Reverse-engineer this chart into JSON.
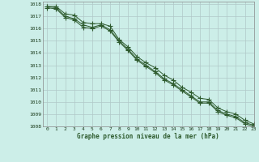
{
  "title": "Graphe pression niveau de la mer (hPa)",
  "background_color": "#cceee8",
  "grid_color": "#b0c8c8",
  "line_color": "#2d5a2d",
  "marker_color": "#2d5a2d",
  "xlim": [
    -0.5,
    23
  ],
  "ylim": [
    1008,
    1018.2
  ],
  "xticks": [
    0,
    1,
    2,
    3,
    4,
    5,
    6,
    7,
    8,
    9,
    10,
    11,
    12,
    13,
    14,
    15,
    16,
    17,
    18,
    19,
    20,
    21,
    22,
    23
  ],
  "yticks": [
    1008,
    1009,
    1010,
    1011,
    1012,
    1013,
    1014,
    1015,
    1016,
    1017,
    1018
  ],
  "series": [
    [
      1017.8,
      1017.8,
      1017.2,
      1017.1,
      1016.5,
      1016.4,
      1016.4,
      1016.2,
      1015.1,
      1014.5,
      1013.7,
      1013.2,
      1012.8,
      1012.2,
      1011.8,
      1011.2,
      1010.8,
      1010.3,
      1010.2,
      1009.5,
      1009.2,
      1009.0,
      1008.5,
      1008.2
    ],
    [
      1017.8,
      1017.7,
      1017.0,
      1016.8,
      1016.3,
      1016.1,
      1016.3,
      1015.9,
      1015.0,
      1014.3,
      1013.5,
      1013.0,
      1012.5,
      1011.9,
      1011.5,
      1011.0,
      1010.5,
      1010.0,
      1010.0,
      1009.3,
      1009.0,
      1008.8,
      1008.3,
      1008.1
    ],
    [
      1017.7,
      1017.6,
      1016.9,
      1016.7,
      1016.1,
      1016.0,
      1016.2,
      1015.8,
      1014.9,
      1014.2,
      1013.4,
      1012.9,
      1012.4,
      1011.8,
      1011.4,
      1010.9,
      1010.4,
      1009.9,
      1009.9,
      1009.2,
      1008.9,
      1008.7,
      1008.2,
      1008.0
    ]
  ]
}
